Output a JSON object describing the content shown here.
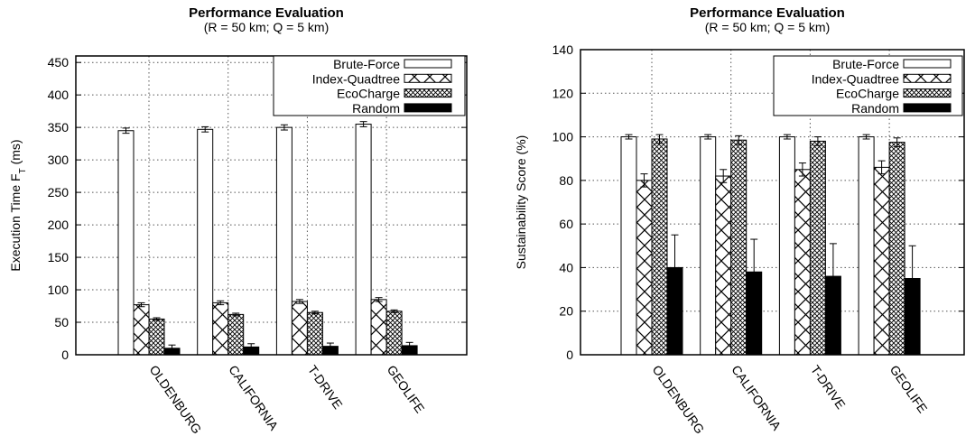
{
  "chart_data": [
    {
      "type": "bar",
      "title": "Performance Evaluation",
      "subtitle": "(R = 50 km; Q = 5 km)",
      "xlabel": "",
      "ylabel": "Execution Time F",
      "ylabel_sub": "T",
      "ylabel_unit": " (ms)",
      "ylim": [
        0,
        460
      ],
      "yticks": [
        0,
        50,
        100,
        150,
        200,
        250,
        300,
        350,
        400,
        450
      ],
      "grid": true,
      "legend": "top-right",
      "categories": [
        "OLDENBURG",
        "CALIFORNIA",
        "T-DRIVE",
        "GEOLIFE"
      ],
      "series": [
        {
          "name": "Brute-Force",
          "values": [
            345,
            347,
            350,
            355
          ],
          "errors": [
            4,
            4,
            4,
            4
          ]
        },
        {
          "name": "Index-Quadtree",
          "values": [
            77,
            80,
            82,
            85
          ],
          "errors": [
            3,
            3,
            3,
            3
          ]
        },
        {
          "name": "EcoCharge",
          "values": [
            55,
            62,
            65,
            67
          ],
          "errors": [
            2,
            2,
            2,
            2
          ]
        },
        {
          "name": "Random",
          "values": [
            10,
            12,
            13,
            14
          ],
          "errors": [
            5,
            5,
            5,
            5
          ]
        }
      ]
    },
    {
      "type": "bar",
      "title": "Performance Evaluation",
      "subtitle": "(R = 50 km; Q = 5 km)",
      "xlabel": "",
      "ylabel": "Sustainability Score (%)",
      "ylim": [
        0,
        140
      ],
      "yticks": [
        0,
        20,
        40,
        60,
        80,
        100,
        120,
        140
      ],
      "grid": true,
      "legend": "top-right",
      "categories": [
        "OLDENBURG",
        "CALIFORNIA",
        "T-DRIVE",
        "GEOLIFE"
      ],
      "series": [
        {
          "name": "Brute-Force",
          "values": [
            100,
            100,
            100,
            100
          ],
          "errors": [
            1,
            1,
            1,
            1
          ]
        },
        {
          "name": "Index-Quadtree",
          "values": [
            80,
            82,
            85,
            86
          ],
          "errors": [
            3,
            3,
            3,
            3
          ]
        },
        {
          "name": "EcoCharge",
          "values": [
            99,
            98.5,
            98,
            97.5
          ],
          "errors": [
            2,
            2,
            2,
            2
          ]
        },
        {
          "name": "Random",
          "values": [
            40,
            38,
            36,
            35
          ],
          "errors": [
            15,
            15,
            15,
            15
          ]
        }
      ]
    }
  ]
}
